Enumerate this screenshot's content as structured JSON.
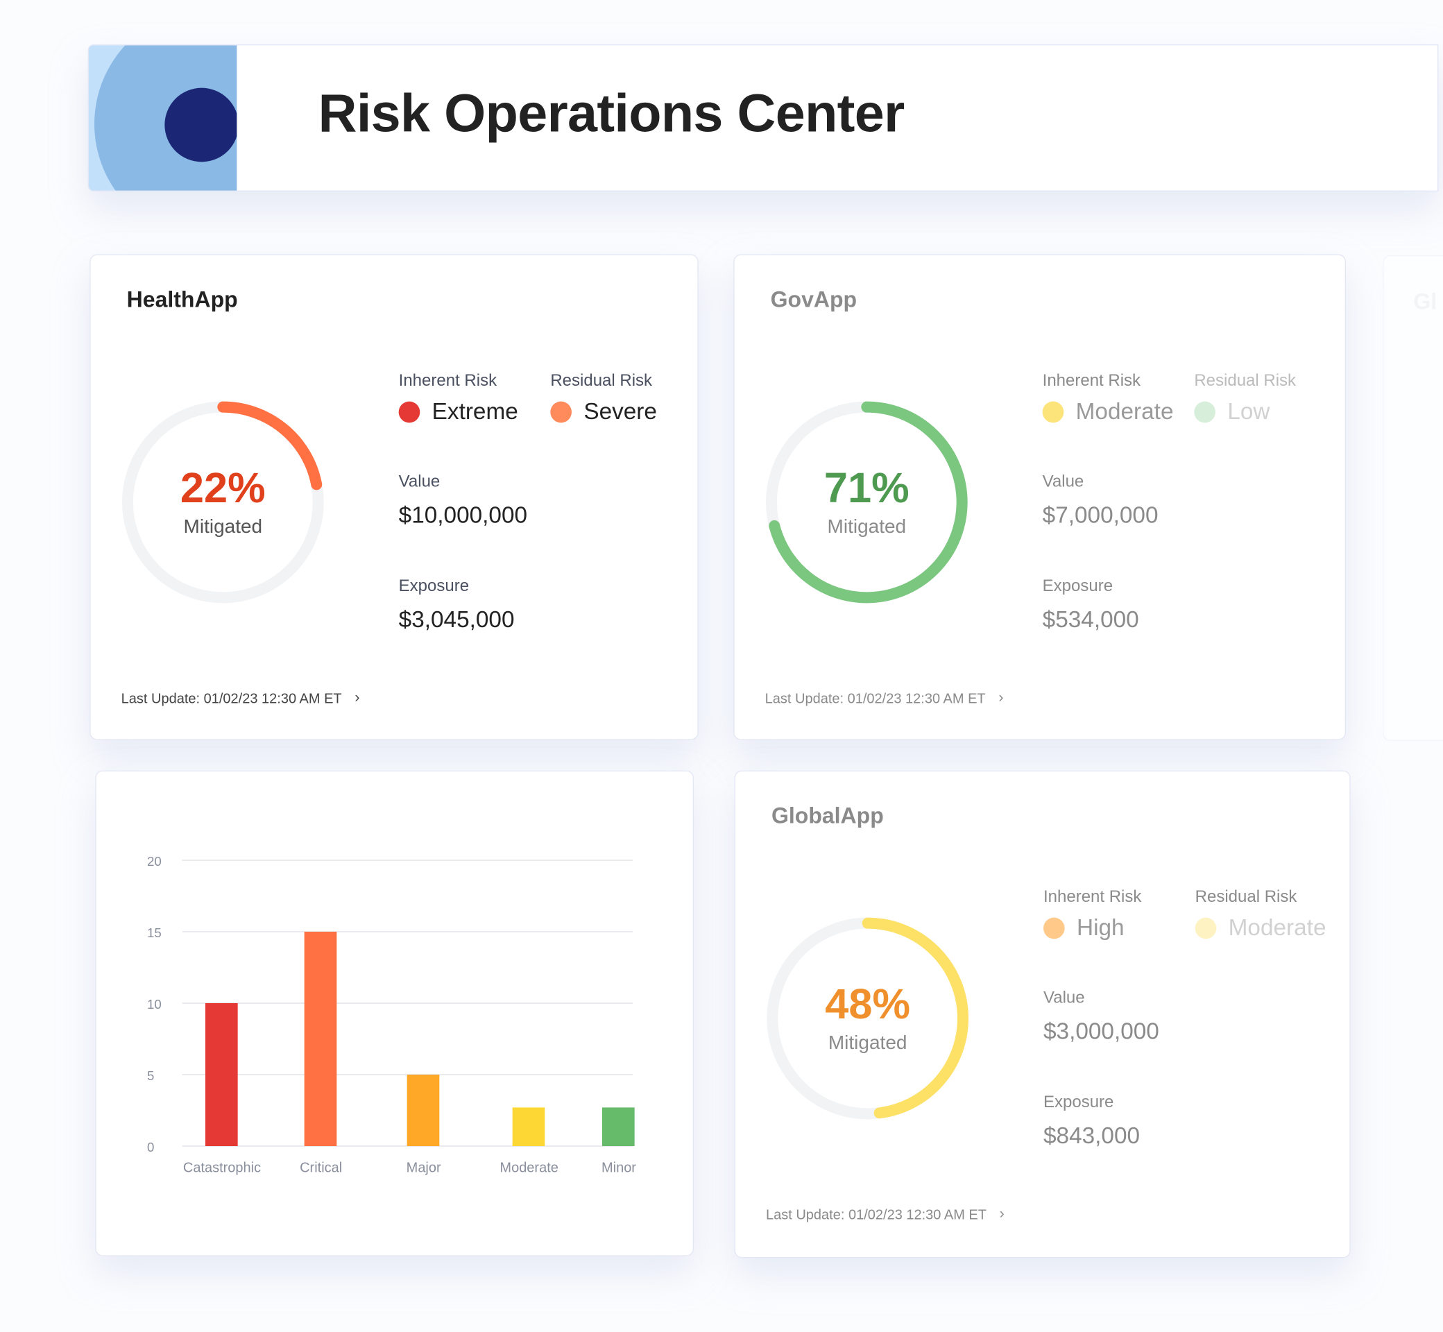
{
  "header": {
    "title": "Risk Operations Center"
  },
  "labels": {
    "inherent": "Inherent Risk",
    "residual": "Residual Risk",
    "value": "Value",
    "exposure": "Exposure",
    "mitigated": "Mitigated"
  },
  "apps": [
    {
      "name": "HealthApp",
      "percent": "22%",
      "mitigated_fraction": 0.22,
      "inherent": "Extreme",
      "inherent_color": "#e53935",
      "residual": "Severe",
      "residual_color": "#ff8a5c",
      "value": "$10,000,000",
      "exposure": "$3,045,000",
      "last_update": "Last Update: 01/02/23 12:30 AM ET",
      "accent": "#ff7043",
      "pct_color": "#e0401c"
    },
    {
      "name": "GovApp",
      "percent": "71%",
      "mitigated_fraction": 0.71,
      "inherent": "Moderate",
      "inherent_color": "#fde47a",
      "residual": "Low",
      "residual_color": "#a8dcae",
      "value": "$7,000,000",
      "exposure": "$534,000",
      "last_update": "Last Update: 01/02/23 12:30 AM ET",
      "accent": "#7cc77f",
      "pct_color": "#4d9a50"
    },
    {
      "name": "GlobalApp",
      "percent": "48%",
      "mitigated_fraction": 0.48,
      "inherent": "High",
      "inherent_color": "#ffc98a",
      "residual": "Moderate",
      "residual_color": "#fde47a",
      "value": "$3,000,000",
      "exposure": "$843,000",
      "last_update": "Last Update: 01/02/23 12:30 AM ET",
      "accent": "#fde166",
      "pct_color": "#f0902c"
    }
  ],
  "ghost_card": {
    "title": "Gl"
  },
  "chart_data": {
    "type": "bar",
    "categories": [
      "Catastrophic",
      "Critical",
      "Major",
      "Moderate",
      "Minor"
    ],
    "values": [
      10,
      15,
      5,
      2.7,
      2.7
    ],
    "colors": [
      "#e53935",
      "#ff7043",
      "#ffa726",
      "#fdd835",
      "#66bb6a"
    ],
    "yticks": [
      "0",
      "5",
      "10",
      "15",
      "20"
    ],
    "ylim": [
      0,
      20
    ],
    "grid": true
  }
}
